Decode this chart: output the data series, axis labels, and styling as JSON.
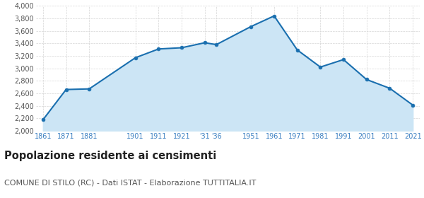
{
  "years": [
    1861,
    1871,
    1881,
    1901,
    1911,
    1921,
    1931,
    1936,
    1951,
    1961,
    1971,
    1981,
    1991,
    2001,
    2011,
    2021
  ],
  "population": [
    2175,
    2660,
    2670,
    3170,
    3310,
    3330,
    3410,
    3380,
    3670,
    3840,
    3295,
    3020,
    3140,
    2820,
    2680,
    2410
  ],
  "x_labels": [
    "1861",
    "1871",
    "1881",
    "1901",
    "1911",
    "1921",
    "'31",
    "'36",
    "1951",
    "1961",
    "1971",
    "1981",
    "1991",
    "2001",
    "2011",
    "2021"
  ],
  "line_color": "#1a6faf",
  "fill_color": "#cce5f5",
  "marker_color": "#1a6faf",
  "grid_color": "#d5d5d5",
  "bg_color": "#ffffff",
  "ylim": [
    2000,
    4000
  ],
  "yticks": [
    2000,
    2200,
    2400,
    2600,
    2800,
    3000,
    3200,
    3400,
    3600,
    3800,
    4000
  ],
  "title": "Popolazione residente ai censimenti",
  "subtitle": "COMUNE DI STILO (RC) - Dati ISTAT - Elaborazione TUTTITALIA.IT",
  "title_fontsize": 10.5,
  "subtitle_fontsize": 8,
  "xlabel_color": "#3a7fc1",
  "ylabel_color": "#555555"
}
